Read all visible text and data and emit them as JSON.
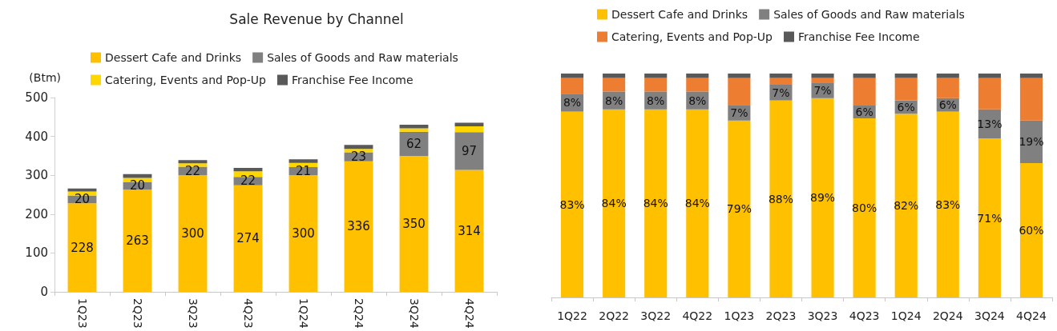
{
  "chart_data": [
    {
      "type": "bar",
      "title": "Sale Revenue by Channel",
      "ylabel": "(Btm)",
      "stacked": true,
      "legend": "top",
      "grid": false,
      "categories": [
        "1Q23",
        "2Q23",
        "3Q23",
        "4Q23",
        "1Q24",
        "2Q24",
        "3Q24",
        "4Q24"
      ],
      "ylim": [
        0,
        500
      ],
      "yticks": [
        0,
        100,
        200,
        300,
        400,
        500
      ],
      "series": [
        {
          "name": "Dessert Cafe and Drinks",
          "color": "#ffc000",
          "values": [
            228,
            263,
            300,
            274,
            300,
            336,
            350,
            314
          ],
          "value_labels": [
            "228",
            "263",
            "300",
            "274",
            "300",
            "336",
            "350",
            "314"
          ]
        },
        {
          "name": "Sales of Goods and Raw materials",
          "color": "#808080",
          "values": [
            20,
            20,
            22,
            22,
            21,
            23,
            62,
            97
          ],
          "value_labels": [
            "20",
            "20",
            "22",
            "22",
            "21",
            "23",
            "62",
            "97"
          ]
        },
        {
          "name": "Catering, Events and Pop-Up",
          "color": "#ffd700",
          "values": [
            10,
            10,
            9,
            14,
            11,
            9,
            9,
            15
          ]
        },
        {
          "name": "Franchise Fee Income",
          "color": "#595959",
          "values": [
            8,
            10,
            8,
            9,
            9,
            10,
            9,
            9
          ]
        }
      ]
    },
    {
      "type": "bar",
      "stacked": true,
      "legend": "top",
      "grid": false,
      "tick_labels": "x",
      "categories": [
        "1Q22",
        "2Q22",
        "3Q22",
        "4Q22",
        "1Q23",
        "2Q23",
        "3Q23",
        "4Q23",
        "1Q24",
        "2Q24",
        "3Q24",
        "4Q24"
      ],
      "ylim": [
        0,
        100
      ],
      "series": [
        {
          "name": "Dessert Cafe and Drinks",
          "color": "#ffc000",
          "values": [
            83,
            84,
            84,
            84,
            79,
            88,
            89,
            80,
            82,
            83,
            71,
            60
          ],
          "value_labels": [
            "83%",
            "84%",
            "84%",
            "84%",
            "79%",
            "88%",
            "89%",
            "80%",
            "82%",
            "83%",
            "71%",
            "60%"
          ]
        },
        {
          "name": "Sales of Goods and Raw materials",
          "color": "#808080",
          "values": [
            8,
            8,
            8,
            8,
            7,
            7,
            7,
            6,
            6,
            6,
            13,
            19
          ],
          "value_labels": [
            "8%",
            "8%",
            "8%",
            "8%",
            "7%",
            "7%",
            "7%",
            "6%",
            "6%",
            "6%",
            "13%",
            "19%"
          ]
        },
        {
          "name": "Catering, Events and Pop-Up",
          "color": "#ed7d31",
          "values": [
            7,
            6,
            6,
            6,
            12,
            3,
            2,
            12,
            10,
            9,
            14,
            19
          ]
        },
        {
          "name": "Franchise Fee Income",
          "color": "#595959",
          "values": [
            2,
            2,
            2,
            2,
            2,
            2,
            2,
            2,
            2,
            2,
            2,
            2
          ]
        }
      ]
    }
  ]
}
